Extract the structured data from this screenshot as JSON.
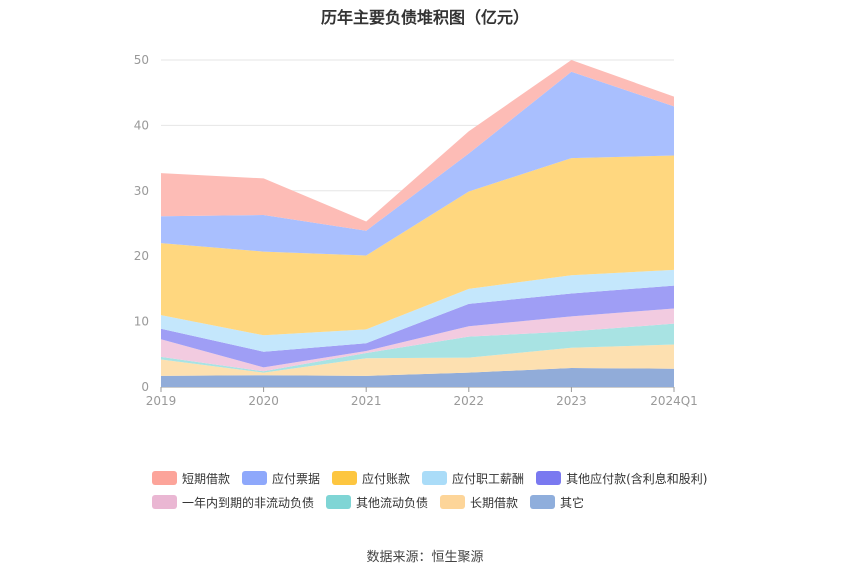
{
  "chart_data": {
    "type": "area",
    "stacked": true,
    "title": "历年主要负债堆积图（亿元）",
    "categories": [
      "2019",
      "2020",
      "2021",
      "2022",
      "2023",
      "2024Q1"
    ],
    "ylim": [
      0,
      50
    ],
    "yticks": [
      0,
      10,
      20,
      30,
      40,
      50
    ],
    "grid": true,
    "legend_position": "bottom",
    "series": [
      {
        "name": "其它",
        "color": "#91acd9",
        "values": [
          1.7,
          1.8,
          1.7,
          2.2,
          2.9,
          2.8
        ]
      },
      {
        "name": "长期借款",
        "color": "#fde0b0",
        "values": [
          2.5,
          0.4,
          2.7,
          2.3,
          3.1,
          3.7
        ]
      },
      {
        "name": "其他流动负债",
        "color": "#a8e3e3",
        "values": [
          0.4,
          0.2,
          0.8,
          3.2,
          2.5,
          3.2
        ]
      },
      {
        "name": "一年内到期的非流动负债",
        "color": "#f2cbe0",
        "values": [
          2.7,
          0.6,
          0.3,
          1.6,
          2.3,
          2.3
        ]
      },
      {
        "name": "其他应付款(含利息和股利)",
        "color": "#9f9ef5",
        "values": [
          1.6,
          2.4,
          1.2,
          3.4,
          3.5,
          3.5
        ]
      },
      {
        "name": "应付职工薪酬",
        "color": "#c4e7fc",
        "values": [
          2.1,
          2.5,
          2.1,
          2.3,
          2.8,
          2.4
        ]
      },
      {
        "name": "应付账款",
        "color": "#ffd77f",
        "values": [
          11.0,
          12.8,
          11.3,
          14.9,
          17.9,
          17.5
        ]
      },
      {
        "name": "应付票据",
        "color": "#a9bffe",
        "values": [
          4.1,
          5.6,
          3.8,
          5.8,
          13.2,
          7.5
        ]
      },
      {
        "name": "短期借款",
        "color": "#fdbcb6",
        "values": [
          6.6,
          5.6,
          1.4,
          3.4,
          1.8,
          1.5
        ]
      }
    ]
  },
  "legend": {
    "row1": [
      {
        "label": "短期借款",
        "color": "#fca49a"
      },
      {
        "label": "应付票据",
        "color": "#8ea8fb"
      },
      {
        "label": "应付账款",
        "color": "#fdc640"
      },
      {
        "label": "应付职工薪酬",
        "color": "#aadcf8"
      },
      {
        "label": "其他应付款(含利息和股利)",
        "color": "#7a79f0"
      }
    ],
    "row2": [
      {
        "label": "一年内到期的非流动负债",
        "color": "#eab7d3"
      },
      {
        "label": "其他流动负债",
        "color": "#7fd5d5"
      },
      {
        "label": "长期借款",
        "color": "#fdd599"
      },
      {
        "label": "其它",
        "color": "#8faedc"
      }
    ]
  },
  "source": "数据来源：恒生聚源"
}
